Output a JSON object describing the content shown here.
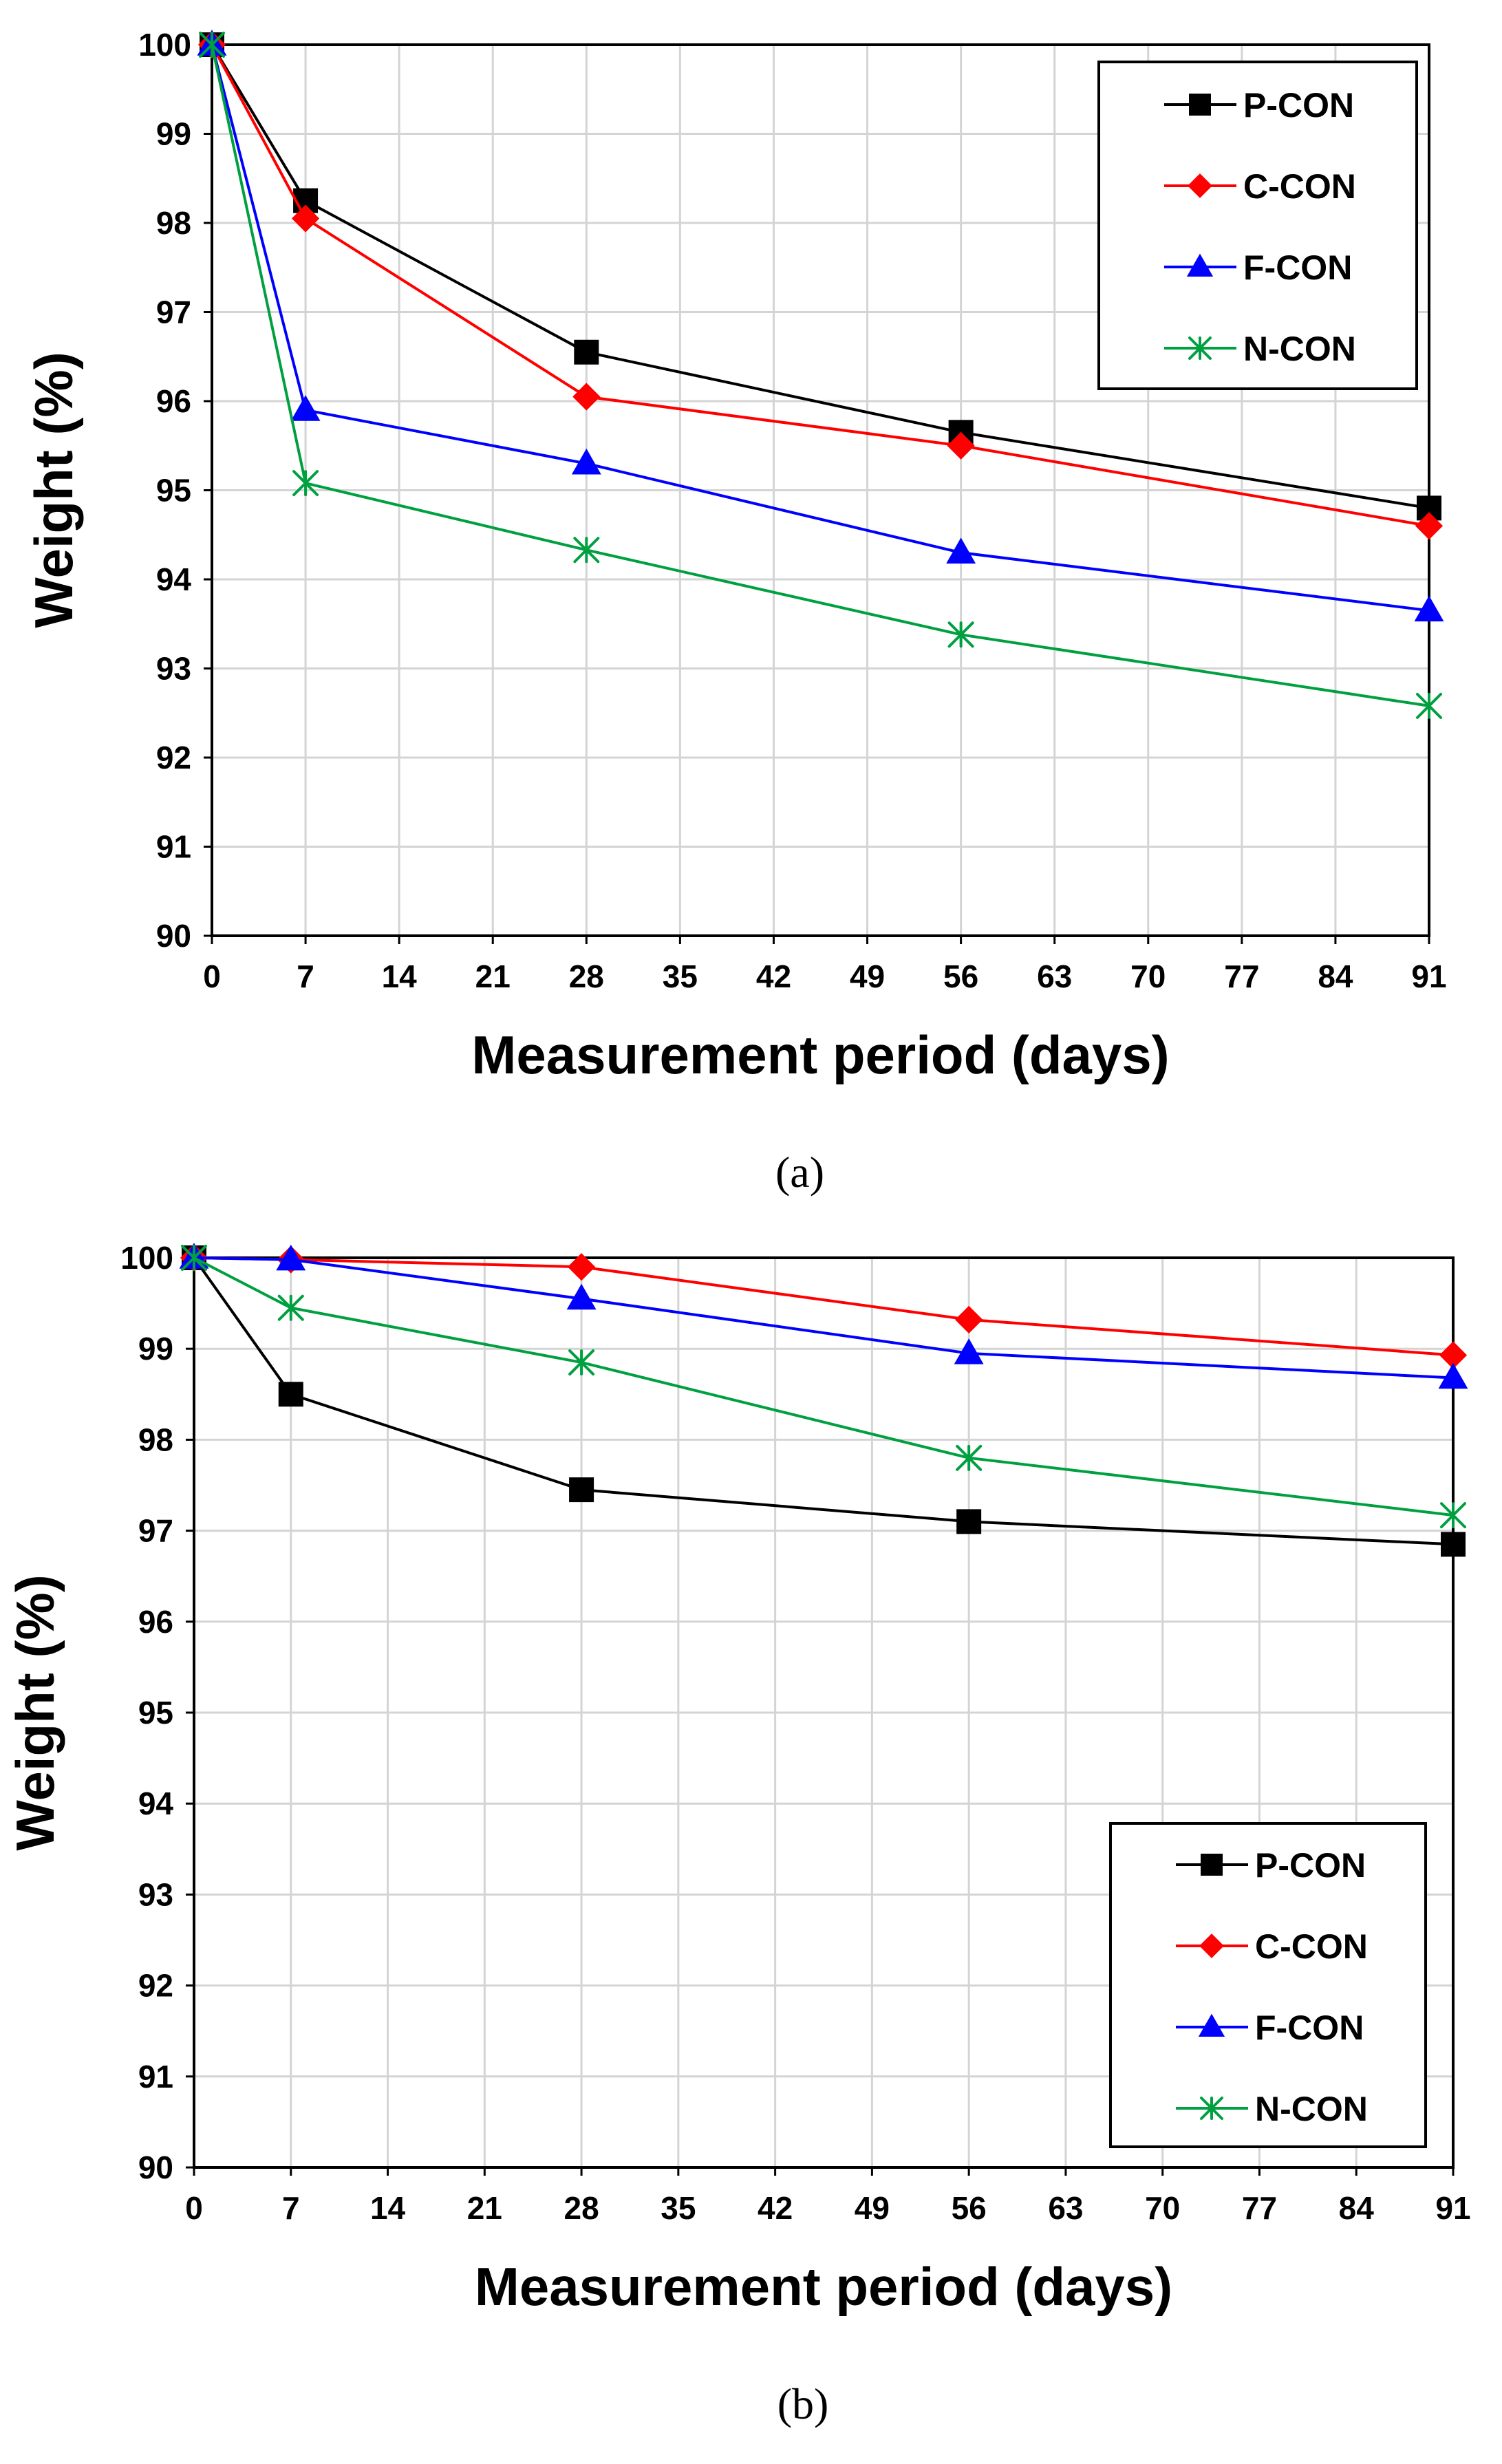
{
  "chart_data": [
    {
      "type": "line",
      "panel_label": "(a)",
      "xlabel": "Measurement period (days)",
      "ylabel": "Weight (%)",
      "xlim": [
        0,
        91
      ],
      "ylim": [
        90,
        100
      ],
      "xticks": [
        0,
        7,
        14,
        21,
        28,
        35,
        42,
        49,
        56,
        63,
        70,
        77,
        84,
        91
      ],
      "yticks": [
        90,
        91,
        92,
        93,
        94,
        95,
        96,
        97,
        98,
        99,
        100
      ],
      "grid": true,
      "legend_position": "top-right",
      "x": [
        0,
        7,
        28,
        56,
        91
      ],
      "series": [
        {
          "name": "P-CON",
          "color": "#000000",
          "marker": "square",
          "values": [
            100,
            98.25,
            96.55,
            95.65,
            94.8
          ]
        },
        {
          "name": "C-CON",
          "color": "#ff0000",
          "marker": "diamond",
          "values": [
            100,
            98.05,
            96.05,
            95.5,
            94.6
          ]
        },
        {
          "name": "F-CON",
          "color": "#0000ff",
          "marker": "triangle",
          "values": [
            100,
            95.9,
            95.3,
            94.3,
            93.65
          ]
        },
        {
          "name": "N-CON",
          "color": "#00a040",
          "marker": "asterisk",
          "values": [
            100,
            95.08,
            94.33,
            93.38,
            92.58
          ]
        }
      ]
    },
    {
      "type": "line",
      "panel_label": "(b)",
      "xlabel": "Measurement period (days)",
      "ylabel": "Weight (%)",
      "xlim": [
        0,
        91
      ],
      "ylim": [
        90,
        100
      ],
      "xticks": [
        0,
        7,
        14,
        21,
        28,
        35,
        42,
        49,
        56,
        63,
        70,
        77,
        84,
        91
      ],
      "yticks": [
        90,
        91,
        92,
        93,
        94,
        95,
        96,
        97,
        98,
        99,
        100
      ],
      "grid": true,
      "legend_position": "bottom-right",
      "x": [
        0,
        7,
        28,
        56,
        91
      ],
      "series": [
        {
          "name": "P-CON",
          "color": "#000000",
          "marker": "square",
          "values": [
            100,
            98.5,
            97.45,
            97.1,
            96.85
          ]
        },
        {
          "name": "C-CON",
          "color": "#ff0000",
          "marker": "diamond",
          "values": [
            100,
            99.98,
            99.9,
            99.32,
            98.93
          ]
        },
        {
          "name": "F-CON",
          "color": "#0000ff",
          "marker": "triangle",
          "values": [
            100,
            99.98,
            99.55,
            98.95,
            98.68
          ]
        },
        {
          "name": "N-CON",
          "color": "#00a040",
          "marker": "asterisk",
          "values": [
            100,
            99.45,
            98.85,
            97.8,
            97.17
          ]
        }
      ]
    }
  ]
}
